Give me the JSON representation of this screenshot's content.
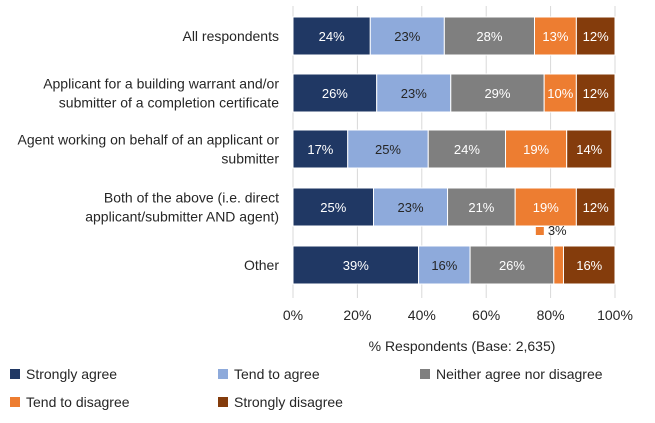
{
  "chart_data": {
    "type": "bar",
    "orientation": "horizontal",
    "stacked": true,
    "xlabel": "% Respondents (Base: 2,635)",
    "xlim": [
      0,
      100
    ],
    "x_ticks": [
      "0%",
      "20%",
      "40%",
      "60%",
      "80%",
      "100%"
    ],
    "grid": true,
    "legend_position": "bottom",
    "categories": [
      [
        "All respondents"
      ],
      [
        "Applicant for a building warrant and/or",
        "submitter of a completion certificate"
      ],
      [
        "Agent working on behalf of an applicant or",
        "submitter"
      ],
      [
        "Both of the above (i.e. direct",
        "applicant/submitter AND agent)"
      ],
      [
        "Other"
      ]
    ],
    "series": [
      {
        "name": "Strongly agree",
        "color": "#203864",
        "values": [
          24,
          26,
          17,
          25,
          39
        ],
        "labels": [
          "24%",
          "26%",
          "17%",
          "25%",
          "39%"
        ]
      },
      {
        "name": "Tend to agree",
        "color": "#8eaadb",
        "values": [
          23,
          23,
          25,
          23,
          16
        ],
        "labels": [
          "23%",
          "23%",
          "25%",
          "23%",
          "16%"
        ]
      },
      {
        "name": "Neither agree nor disagree",
        "color": "#7f7f7f",
        "values": [
          28,
          29,
          24,
          21,
          26
        ],
        "labels": [
          "28%",
          "29%",
          "24%",
          "21%",
          "26%"
        ]
      },
      {
        "name": "Tend to disagree",
        "color": "#ed7d31",
        "values": [
          13,
          10,
          19,
          19,
          3
        ],
        "labels": [
          "13%",
          "10%",
          "19%",
          "19%",
          "3%"
        ]
      },
      {
        "name": "Strongly disagree",
        "color": "#843c0c",
        "values": [
          12,
          12,
          14,
          12,
          16
        ],
        "labels": [
          "12%",
          "12%",
          "14%",
          "12%",
          "16%"
        ]
      }
    ],
    "annotations": [
      {
        "category_index": 4,
        "series_index": 3,
        "text": "3%",
        "placement": "above-with-marker"
      }
    ]
  }
}
